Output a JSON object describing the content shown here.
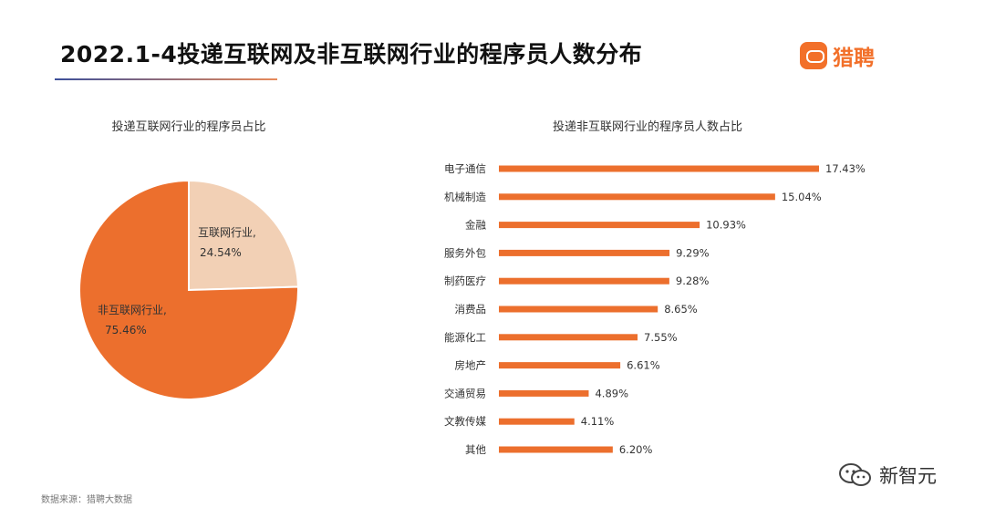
{
  "header": {
    "title": "2022.1-4投递互联网及非互联网行业的程序员人数分布",
    "logo_text": "猎聘"
  },
  "footer": {
    "source": "数据来源：猎聘大数据",
    "watermark": "新智元"
  },
  "colors": {
    "primary": "#ec6f2d",
    "light": "#f2d0b5",
    "title_line_start": "#3c4f9a",
    "title_line_end": "#e88a5a"
  },
  "chart_data": [
    {
      "type": "pie",
      "title": "投递互联网行业的程序员占比",
      "slices": [
        {
          "label": "互联网行业,",
          "value": 24.54,
          "value_label": "24.54%"
        },
        {
          "label": "非互联网行业,",
          "value": 75.46,
          "value_label": "75.46%"
        }
      ]
    },
    {
      "type": "bar",
      "orientation": "horizontal",
      "title": "投递非互联网行业的程序员人数占比",
      "categories": [
        "电子通信",
        "机械制造",
        "金融",
        "服务外包",
        "制药医疗",
        "消费品",
        "能源化工",
        "房地产",
        "交通贸易",
        "文教传媒",
        "其他"
      ],
      "values": [
        17.43,
        15.04,
        10.93,
        9.29,
        9.28,
        8.65,
        7.55,
        6.61,
        4.89,
        4.11,
        6.2
      ],
      "value_labels": [
        "17.43%",
        "15.04%",
        "10.93%",
        "9.29%",
        "9.28%",
        "8.65%",
        "7.55%",
        "6.61%",
        "4.89%",
        "4.11%",
        "6.20%"
      ]
    }
  ]
}
